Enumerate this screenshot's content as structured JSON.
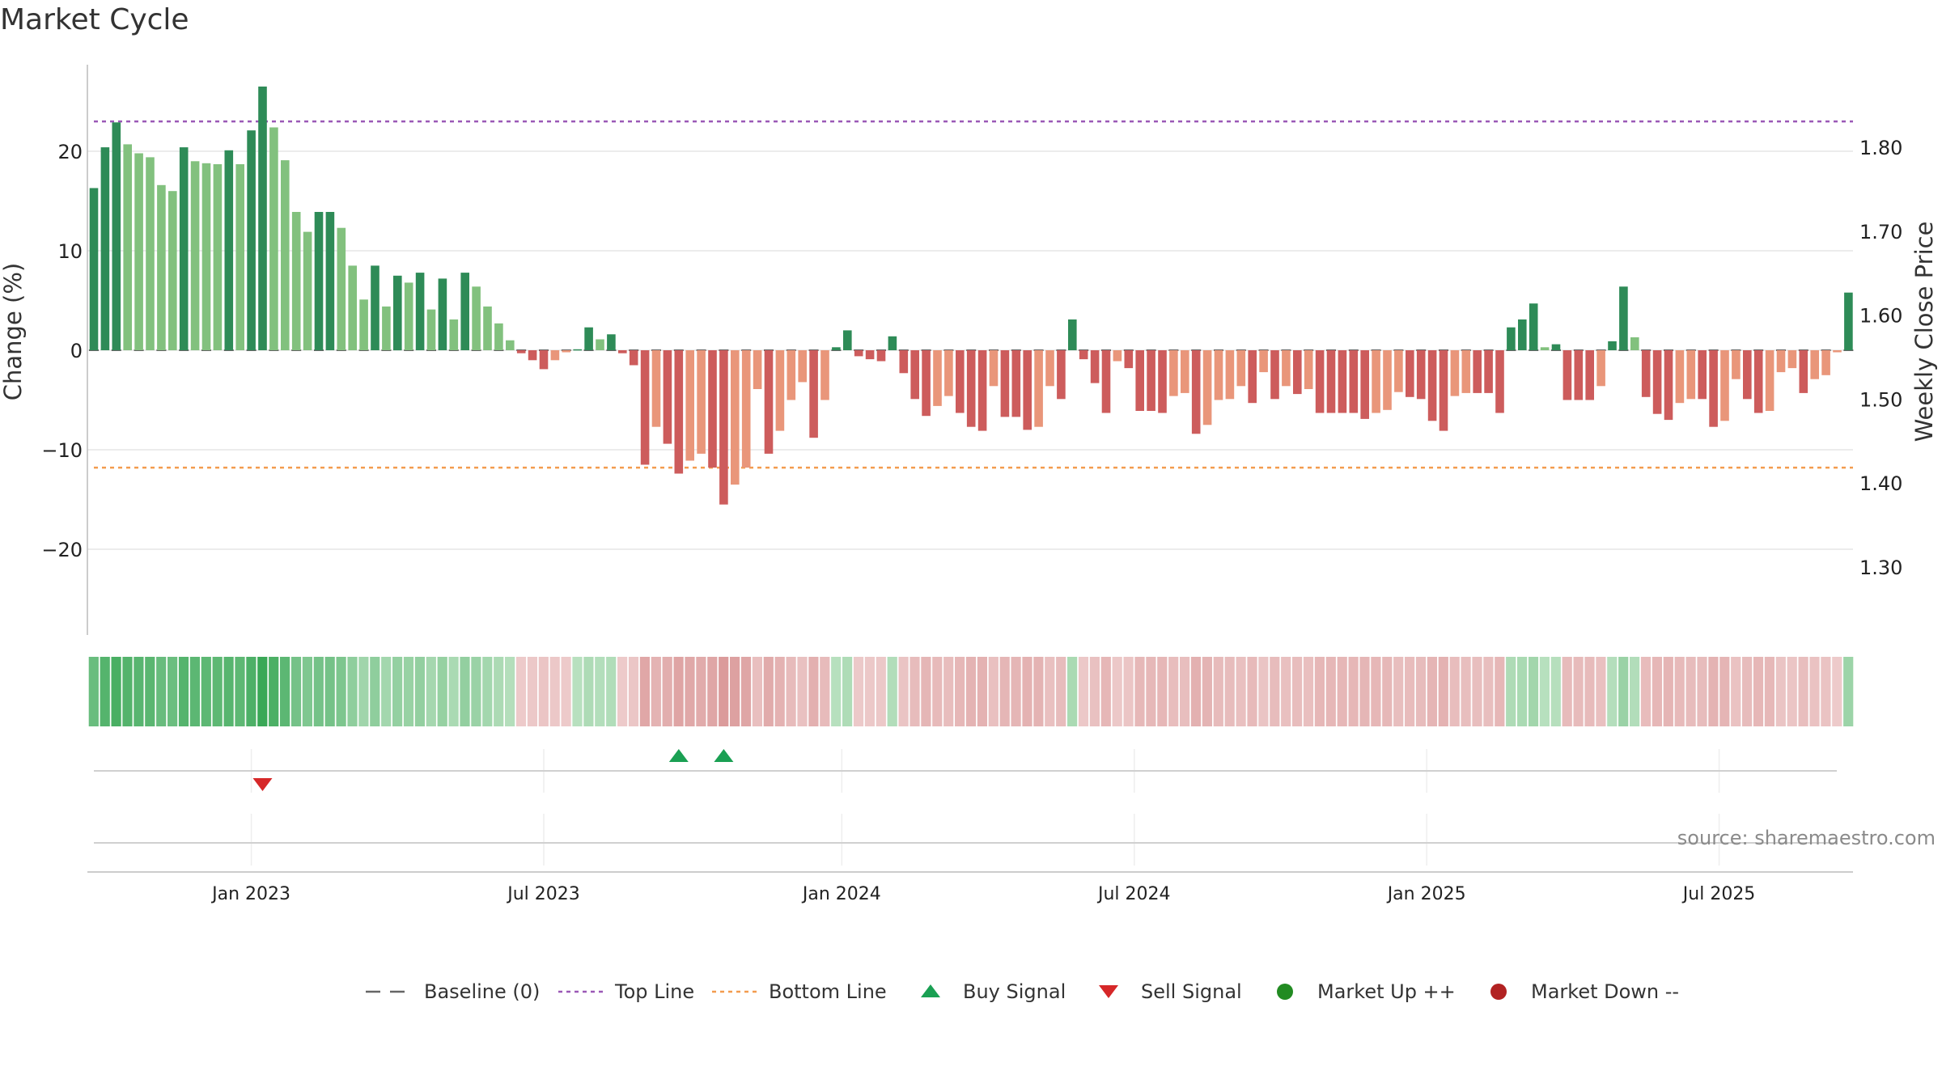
{
  "chart_data": {
    "type": "bar",
    "title": "Market Cycle",
    "ylabel": "Change (%)",
    "y2label": "Weekly Close Price",
    "ylim": [
      -29,
      29
    ],
    "y2lim": [
      1.2198,
      1.8993
    ],
    "yticks": [
      {
        "v": 20,
        "t": "20"
      },
      {
        "v": 10,
        "t": "10"
      },
      {
        "v": 0,
        "t": "0"
      },
      {
        "v": -10,
        "t": "−10"
      },
      {
        "v": -20,
        "t": "−20"
      }
    ],
    "y2ticks": [
      "1.80",
      "1.70",
      "1.60",
      "1.50",
      "1.40",
      "1.30"
    ],
    "xticks": [
      "Jan 2023",
      "Jul 2023",
      "Jan 2024",
      "Jul 2024",
      "Jan 2025",
      "Jul 2025"
    ],
    "xtick_weeks": [
      14,
      40,
      66.5,
      92.5,
      118.5,
      144.5
    ],
    "top_line": 23,
    "bottom_line": -11.8,
    "values": [
      16.3,
      20.4,
      22.9,
      20.7,
      19.8,
      19.4,
      16.6,
      16.0,
      20.4,
      19.0,
      18.8,
      18.7,
      20.1,
      18.7,
      22.1,
      26.5,
      22.4,
      19.1,
      13.9,
      11.9,
      13.9,
      13.9,
      12.3,
      8.5,
      5.1,
      8.5,
      4.4,
      7.5,
      6.8,
      7.8,
      4.1,
      7.2,
      3.1,
      7.8,
      6.4,
      4.4,
      2.7,
      1.0,
      -0.3,
      -1.0,
      -1.9,
      -1.0,
      -0.2,
      0.1,
      2.3,
      1.1,
      1.6,
      -0.3,
      -1.5,
      -11.5,
      -7.7,
      -9.4,
      -12.4,
      -11.1,
      -10.4,
      -11.8,
      -15.5,
      -13.5,
      -11.8,
      -3.9,
      -10.4,
      -8.1,
      -5.0,
      -3.2,
      -8.8,
      -5.0,
      0.3,
      2.0,
      -0.6,
      -0.9,
      -1.1,
      1.4,
      -2.3,
      -4.9,
      -6.6,
      -5.6,
      -4.6,
      -6.3,
      -7.7,
      -8.1,
      -3.6,
      -6.7,
      -6.7,
      -8.0,
      -7.7,
      -3.6,
      -4.9,
      3.1,
      -0.9,
      -3.3,
      -6.3,
      -1.1,
      -1.8,
      -6.1,
      -6.1,
      -6.3,
      -4.6,
      -4.3,
      -8.4,
      -7.5,
      -5.0,
      -4.9,
      -3.6,
      -5.3,
      -2.2,
      -4.9,
      -3.6,
      -4.4,
      -3.9,
      -6.3,
      -6.3,
      -6.3,
      -6.3,
      -6.9,
      -6.3,
      -6.0,
      -4.2,
      -4.7,
      -4.9,
      -7.1,
      -8.1,
      -4.6,
      -4.3,
      -4.3,
      -4.3,
      -6.3,
      2.3,
      3.1,
      4.7,
      0.3,
      0.6,
      -5.0,
      -5.0,
      -5.0,
      -3.6,
      0.9,
      6.4,
      1.3,
      -4.7,
      -6.4,
      -7.0,
      -5.3,
      -4.9,
      -4.9,
      -7.7,
      -7.1,
      -2.9,
      -4.9,
      -6.3,
      -6.1,
      -2.2,
      -1.8,
      -4.3,
      -2.9,
      -2.5,
      -0.2,
      5.8
    ],
    "buy_signal_weeks": [
      52,
      56
    ],
    "sell_signal_weeks": [
      15
    ],
    "colors": {
      "up_dark": "#2e8b57",
      "up_light": "#82c17e",
      "down_dark": "#cd5c5c",
      "down_light": "#e9967a",
      "top_line": "#9b59b6",
      "bottom_line": "#f39c4f",
      "baseline": "#666666",
      "buy": "#1aa053",
      "sell": "#d62728",
      "market_up": "#228b22",
      "market_down": "#b22222"
    },
    "legend": [
      "Baseline (0)",
      "Top Line",
      "Bottom Line",
      "Buy Signal",
      "Sell Signal",
      "Market Up ++",
      "Market Down --"
    ],
    "legend_position": "bottom"
  },
  "source": "source: sharemaestro.com"
}
